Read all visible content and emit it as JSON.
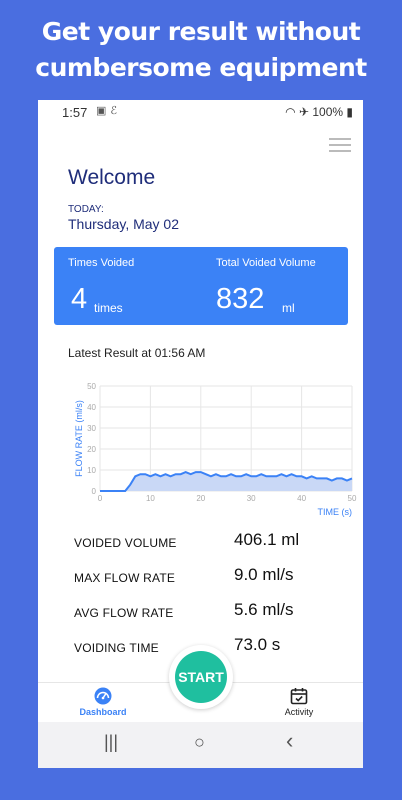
{
  "promo": {
    "line1": "Get your result without",
    "line2": "cumbersome equipment"
  },
  "status_bar": {
    "time": "1:57",
    "battery": "100%",
    "icons": [
      "image-icon",
      "app-notification-icon",
      "wifi-icon",
      "airplane-icon",
      "battery-icon"
    ]
  },
  "header": {
    "welcome": "Welcome",
    "today_label": "TODAY:",
    "today_date": "Thursday, May 02"
  },
  "stats": {
    "times_voided_label": "Times Voided",
    "times_voided_value": "4",
    "times_voided_unit": "times",
    "total_volume_label": "Total Voided Volume",
    "total_volume_value": "832",
    "total_volume_unit": "ml"
  },
  "latest_result": "Latest Result at 01:56 AM",
  "chart_data": {
    "type": "area",
    "xlabel": "TIME (s)",
    "ylabel": "FLOW RATE (ml/s)",
    "xlim": [
      0,
      50
    ],
    "ylim": [
      0,
      50
    ],
    "x_ticks": [
      "0",
      "10",
      "20",
      "30",
      "40",
      "50"
    ],
    "y_ticks": [
      "0",
      "10",
      "20",
      "30",
      "40",
      "50"
    ],
    "grid": true,
    "color": "#3b82f6",
    "fill": "#c9d8f6",
    "series": [
      {
        "x": [
          0,
          5,
          6,
          7,
          8,
          9,
          10,
          11,
          12,
          13,
          14,
          15,
          16,
          17,
          18,
          19,
          20,
          21,
          22,
          23,
          24,
          25,
          26,
          27,
          28,
          29,
          30,
          31,
          32,
          33,
          34,
          35,
          36,
          37,
          38,
          39,
          40,
          41,
          42,
          43,
          44,
          45,
          46,
          47,
          48,
          49,
          50
        ],
        "y": [
          0,
          0,
          3,
          7,
          8,
          8,
          7,
          8,
          7,
          8,
          7,
          8,
          8,
          9,
          8,
          9,
          9,
          8,
          7,
          8,
          7,
          7,
          8,
          7,
          7,
          8,
          7,
          7,
          8,
          7,
          7,
          7,
          8,
          7,
          8,
          7,
          7,
          6,
          7,
          6,
          6,
          6,
          5,
          6,
          6,
          5,
          6
        ]
      }
    ]
  },
  "metrics": [
    {
      "label": "VOIDED VOLUME",
      "value": "406.1 ml"
    },
    {
      "label": "MAX FLOW RATE",
      "value": "9.0 ml/s"
    },
    {
      "label": "AVG FLOW RATE",
      "value": "5.6 ml/s"
    },
    {
      "label": "VOIDING TIME",
      "value": "73.0 s"
    }
  ],
  "start_button": "START",
  "bottom_nav": {
    "dashboard": "Dashboard",
    "activity": "Activity"
  },
  "system_nav": {
    "recents": "|||",
    "home": "○",
    "back": "‹"
  }
}
